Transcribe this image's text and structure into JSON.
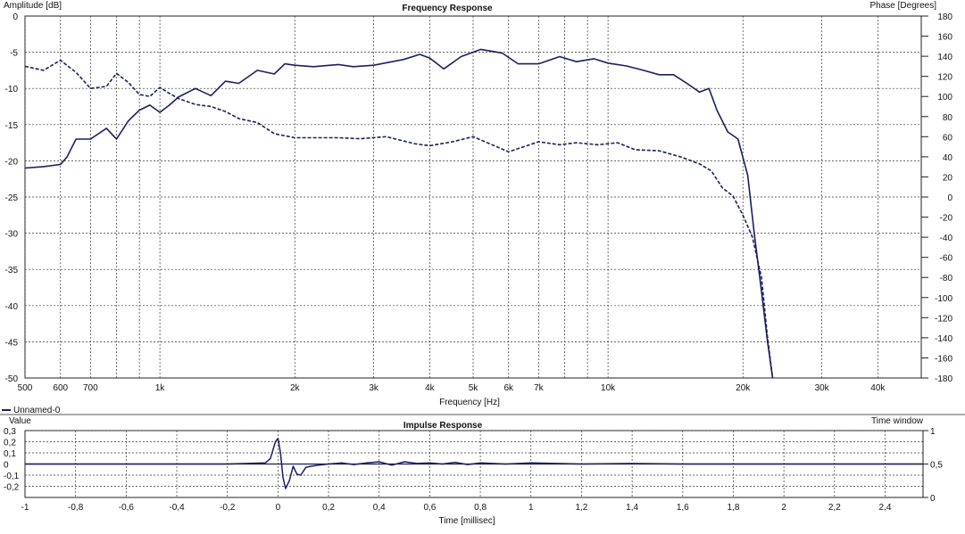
{
  "chart_data": [
    {
      "type": "line",
      "title": "Frequency Response",
      "xlabel": "Frequency [Hz]",
      "ylabel": "Amplitude [dB]",
      "y2label": "Phase [Degrees]",
      "xscale": "log",
      "xlim": [
        500,
        50000
      ],
      "ylim": [
        -50,
        0
      ],
      "y2lim": [
        -180,
        180
      ],
      "grid": true,
      "xticks": [
        {
          "value": 500,
          "label": "500"
        },
        {
          "value": 600,
          "label": "600"
        },
        {
          "value": 700,
          "label": "700"
        },
        {
          "value": 1000,
          "label": "1k"
        },
        {
          "value": 2000,
          "label": "2k"
        },
        {
          "value": 3000,
          "label": "3k"
        },
        {
          "value": 4000,
          "label": "4k"
        },
        {
          "value": 5000,
          "label": "5k"
        },
        {
          "value": 6000,
          "label": "6k"
        },
        {
          "value": 7000,
          "label": "7k"
        },
        {
          "value": 10000,
          "label": "10k"
        },
        {
          "value": 20000,
          "label": "20k"
        },
        {
          "value": 30000,
          "label": "30k"
        },
        {
          "value": 40000,
          "label": "40k"
        }
      ],
      "yticks": [
        "0",
        "-5",
        "-10",
        "-15",
        "-20",
        "-25",
        "-30",
        "-35",
        "-40",
        "-45",
        "-50"
      ],
      "y2ticks": [
        "180",
        "160",
        "140",
        "120",
        "100",
        "80",
        "60",
        "40",
        "20",
        "0",
        "-20",
        "-40",
        "-60",
        "-80",
        "-100",
        "-120",
        "-140",
        "-160",
        "-180"
      ],
      "legend": {
        "position": "bottom-left",
        "entries": [
          "Unnamed-0"
        ]
      },
      "series": [
        {
          "name": "Unnamed-0",
          "axis": "amplitude",
          "style": "solid",
          "color": "#1a1f5e",
          "x": [
            500,
            550,
            600,
            620,
            650,
            700,
            760,
            800,
            850,
            900,
            950,
            1000,
            1050,
            1100,
            1200,
            1300,
            1400,
            1500,
            1650,
            1800,
            1900,
            2000,
            2200,
            2500,
            2700,
            3000,
            3500,
            3800,
            4000,
            4300,
            4700,
            5200,
            5800,
            6300,
            7000,
            7800,
            8500,
            9300,
            10000,
            11000,
            12000,
            13000,
            14000,
            15000,
            16000,
            16800,
            17500,
            18500,
            19500,
            20500,
            21200,
            22000,
            22700,
            23300
          ],
          "y": [
            -21.0,
            -20.8,
            -20.5,
            -19.5,
            -17.0,
            -17.0,
            -15.5,
            -17.0,
            -14.5,
            -13.0,
            -12.3,
            -13.3,
            -12.3,
            -11.2,
            -10.0,
            -11.0,
            -9.0,
            -9.3,
            -7.5,
            -8.0,
            -6.6,
            -6.8,
            -7.0,
            -6.7,
            -7.0,
            -6.8,
            -6.0,
            -5.3,
            -5.8,
            -7.3,
            -5.6,
            -4.6,
            -5.1,
            -6.6,
            -6.6,
            -5.6,
            -6.3,
            -5.9,
            -6.5,
            -6.9,
            -7.5,
            -8.1,
            -8.1,
            -9.3,
            -10.5,
            -10.0,
            -13.0,
            -16.0,
            -17.0,
            -22.0,
            -30.0,
            -38.0,
            -45.0,
            -50.0
          ]
        },
        {
          "name": "Unnamed-0 phase",
          "axis": "phase",
          "style": "dashed",
          "color": "#1a1f5e",
          "x": [
            500,
            550,
            600,
            650,
            700,
            760,
            800,
            850,
            900,
            950,
            1000,
            1050,
            1100,
            1200,
            1300,
            1400,
            1500,
            1650,
            1800,
            2000,
            2200,
            2500,
            2800,
            3200,
            3700,
            4000,
            4500,
            5000,
            6000,
            7000,
            7800,
            8500,
            9500,
            10500,
            11500,
            13000,
            14500,
            16000,
            17000,
            18000,
            19000,
            20000,
            21000,
            22000,
            22700,
            23300
          ],
          "y": [
            130,
            126,
            136,
            124,
            108,
            110,
            123,
            114,
            102,
            100,
            109,
            103,
            98,
            92,
            90,
            85,
            78,
            74,
            63,
            59,
            59,
            59,
            58,
            60,
            53,
            51,
            55,
            60,
            45,
            55,
            52,
            54,
            52,
            54,
            47,
            46,
            40,
            33,
            26,
            9,
            1,
            -18,
            -40,
            -80,
            -140,
            -180
          ]
        }
      ]
    },
    {
      "type": "line",
      "title": "Impulse Response",
      "xlabel": "Time [millisec]",
      "ylabel": "Value",
      "y2label": "Time window",
      "xlim": [
        -1,
        2.55
      ],
      "ylim": [
        -0.3,
        0.3
      ],
      "y2lim": [
        0,
        1
      ],
      "grid": true,
      "xticks": [
        {
          "value": -1,
          "label": "-1"
        },
        {
          "value": -0.8,
          "label": "-0,8"
        },
        {
          "value": -0.6,
          "label": "-0,6"
        },
        {
          "value": -0.4,
          "label": "-0,4"
        },
        {
          "value": -0.2,
          "label": "-0,2"
        },
        {
          "value": 0,
          "label": "0"
        },
        {
          "value": 0.2,
          "label": "0,2"
        },
        {
          "value": 0.4,
          "label": "0,4"
        },
        {
          "value": 0.6,
          "label": "0,6"
        },
        {
          "value": 0.8,
          "label": "0,8"
        },
        {
          "value": 1,
          "label": "1"
        },
        {
          "value": 1.2,
          "label": "1,2"
        },
        {
          "value": 1.4,
          "label": "1,4"
        },
        {
          "value": 1.6,
          "label": "1,6"
        },
        {
          "value": 1.8,
          "label": "1,8"
        },
        {
          "value": 2,
          "label": "2"
        },
        {
          "value": 2.2,
          "label": "2,2"
        },
        {
          "value": 2.4,
          "label": "2,4"
        }
      ],
      "yticks": [
        {
          "value": 0.3,
          "label": "0,3"
        },
        {
          "value": 0.2,
          "label": "0,2"
        },
        {
          "value": 0.1,
          "label": "0,1"
        },
        {
          "value": 0,
          "label": "0"
        },
        {
          "value": -0.1,
          "label": "-0,1"
        },
        {
          "value": -0.2,
          "label": "-0,2"
        }
      ],
      "y2ticks": [
        {
          "value": 1,
          "label": "1"
        },
        {
          "value": 0.5,
          "label": "0,5"
        },
        {
          "value": 0,
          "label": "0"
        }
      ],
      "series": [
        {
          "name": "impulse",
          "style": "solid",
          "color": "#1a1f5e",
          "x": [
            -1.0,
            -0.2,
            -0.05,
            -0.03,
            -0.01,
            0.0,
            0.01,
            0.02,
            0.03,
            0.045,
            0.06,
            0.075,
            0.09,
            0.11,
            0.13,
            0.16,
            0.2,
            0.25,
            0.3,
            0.35,
            0.4,
            0.45,
            0.5,
            0.55,
            0.6,
            0.65,
            0.7,
            0.75,
            0.8,
            0.9,
            1.0,
            1.2,
            1.4,
            1.6,
            1.8,
            2.0,
            2.2,
            2.55
          ],
          "y": [
            0.0,
            0.0,
            0.01,
            0.05,
            0.2,
            0.23,
            0.1,
            -0.12,
            -0.22,
            -0.15,
            -0.02,
            -0.09,
            -0.1,
            -0.03,
            -0.02,
            -0.01,
            0.0,
            0.01,
            -0.005,
            0.01,
            0.02,
            -0.01,
            0.02,
            0.005,
            0.01,
            0.0,
            0.015,
            -0.005,
            0.01,
            0.0,
            0.01,
            0.0,
            0.005,
            0.0,
            0.0,
            0.0,
            0.0,
            0.0
          ]
        },
        {
          "name": "time window",
          "axis": "window",
          "style": "solid",
          "color": "#1a1f5e",
          "x": [
            -1,
            2.55
          ],
          "y": [
            0.5,
            0.5
          ]
        }
      ]
    }
  ]
}
